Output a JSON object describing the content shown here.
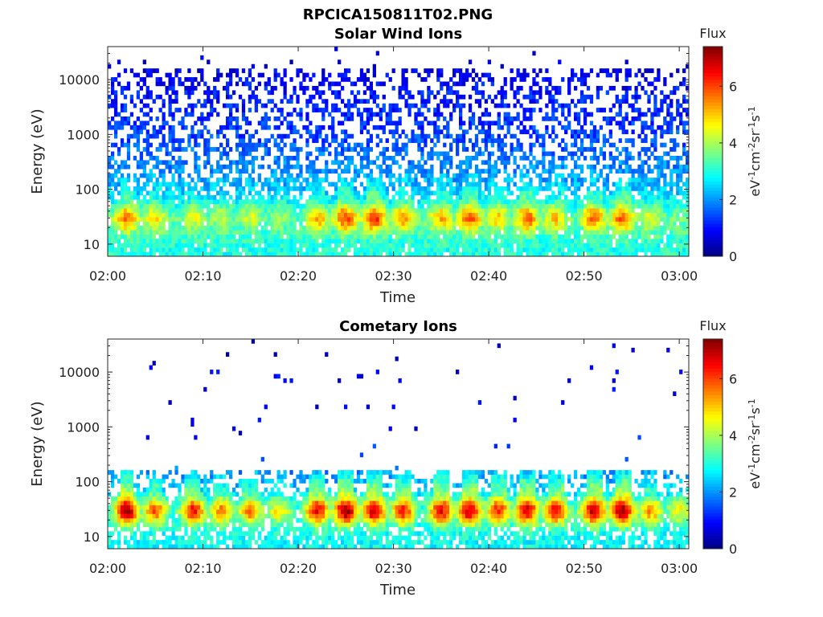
{
  "figure": {
    "title": "RPCICA150811T02.PNG"
  },
  "colorbar": {
    "label": "Flux",
    "unit_parts": [
      "eV",
      "-1",
      "cm",
      "-2",
      "sr",
      "-1",
      "s",
      "-1"
    ],
    "ticks": [
      0,
      2,
      4,
      6
    ],
    "range": [
      0,
      7.4
    ],
    "colormap": "jet"
  },
  "chart_data": [
    {
      "type": "heatmap",
      "title": "Solar Wind Ions",
      "xlabel": "Time",
      "ylabel": "Energy (eV)",
      "x_ticks": [
        "02:00",
        "02:10",
        "02:20",
        "02:30",
        "02:40",
        "02:50",
        "03:00"
      ],
      "x_range": [
        "02:00",
        "03:01"
      ],
      "y_ticks": [
        10,
        100,
        1000,
        10000
      ],
      "y_scale": "log",
      "y_range": [
        6,
        40000
      ],
      "clim": [
        0,
        7.4
      ],
      "grid": false,
      "pulse_times": [
        "02:02",
        "02:05",
        "02:09",
        "02:12",
        "02:15",
        "02:18",
        "02:22",
        "02:25",
        "02:28",
        "02:31",
        "02:35",
        "02:38",
        "02:41",
        "02:44",
        "02:47",
        "02:51",
        "02:54",
        "02:57",
        "03:00"
      ],
      "pulse_energy_eV": 30,
      "pulse_peak_flux": [
        5.6,
        4.8,
        4.4,
        4.2,
        4.3,
        3.8,
        5.2,
        6.0,
        6.2,
        5.3,
        5.2,
        5.9,
        4.9,
        5.8,
        5.0,
        5.6,
        5.8,
        4.4,
        3.6
      ],
      "background_flux_by_energy": {
        "8": 3.0,
        "30": 3.2,
        "100": 2.3,
        "1000": 1.4,
        "10000": 0.9,
        "20000": 0.6
      }
    },
    {
      "type": "heatmap",
      "title": "Cometary Ions",
      "xlabel": "Time",
      "ylabel": "Energy (eV)",
      "x_ticks": [
        "02:00",
        "02:10",
        "02:20",
        "02:30",
        "02:40",
        "02:50",
        "03:00"
      ],
      "x_range": [
        "02:00",
        "03:01"
      ],
      "y_ticks": [
        10,
        100,
        1000,
        10000
      ],
      "y_scale": "log",
      "y_range": [
        6,
        40000
      ],
      "clim": [
        0,
        7.4
      ],
      "grid": false,
      "pulse_times": [
        "02:02",
        "02:05",
        "02:09",
        "02:12",
        "02:15",
        "02:18",
        "02:22",
        "02:25",
        "02:28",
        "02:31",
        "02:35",
        "02:38",
        "02:41",
        "02:44",
        "02:47",
        "02:51",
        "02:54",
        "02:57",
        "03:00"
      ],
      "pulse_energy_eV": 30,
      "pulse_peak_flux": [
        7.2,
        5.8,
        6.4,
        5.5,
        5.6,
        4.8,
        6.6,
        7.3,
        7.0,
        6.3,
        6.6,
        6.9,
        6.2,
        6.8,
        6.4,
        7.0,
        7.2,
        5.4,
        4.6
      ],
      "background_flux_by_energy": {
        "8": 2.8,
        "30": 2.9,
        "100": 2.2,
        "1000": 0.8,
        "10000": 0.7,
        "20000": 0.6
      }
    }
  ]
}
